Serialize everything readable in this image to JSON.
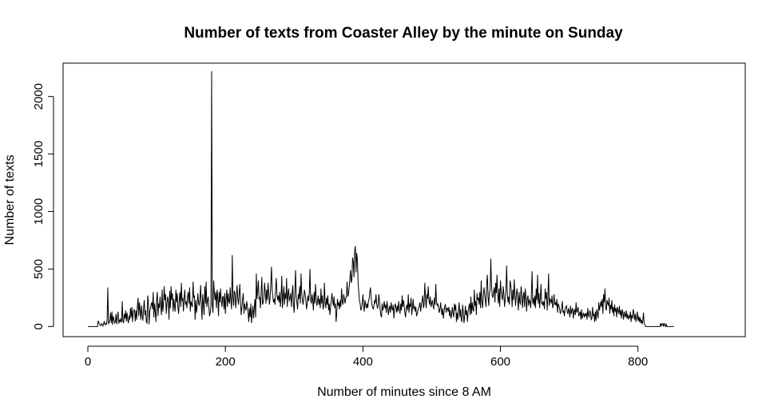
{
  "chart_data": {
    "type": "line",
    "title": "Number of texts from Coaster Alley by the minute on Sunday",
    "xlabel": "Number of minutes since 8 AM",
    "ylabel": "Number of texts",
    "xlim": [
      -36,
      956
    ],
    "ylim": [
      -88,
      2290
    ],
    "x_ticks": [
      0,
      200,
      400,
      600,
      800
    ],
    "y_ticks": [
      0,
      500,
      1000,
      1500,
      2000
    ],
    "grid": false,
    "line_color": "#000000",
    "x_start": 0,
    "x_step": 1,
    "values": [
      0,
      0,
      0,
      0,
      0,
      0,
      0,
      0,
      0,
      0,
      0,
      0,
      0,
      0,
      0,
      50,
      35,
      20,
      8,
      10,
      25,
      18,
      5,
      30,
      42,
      15,
      25,
      20,
      60,
      340,
      20,
      40,
      55,
      120,
      30,
      130,
      15,
      90,
      60,
      30,
      40,
      110,
      20,
      80,
      130,
      25,
      60,
      40,
      70,
      35,
      220,
      50,
      30,
      110,
      70,
      140,
      45,
      120,
      60,
      30,
      95,
      60,
      160,
      80,
      170,
      40,
      120,
      150,
      130,
      45,
      140,
      60,
      180,
      250,
      90,
      210,
      140,
      60,
      185,
      100,
      50,
      150,
      230,
      100,
      140,
      40,
      30,
      270,
      210,
      20,
      130,
      160,
      190,
      210,
      150,
      300,
      80,
      200,
      130,
      40,
      230,
      300,
      90,
      200,
      160,
      260,
      180,
      100,
      320,
      130,
      190,
      350,
      230,
      280,
      110,
      200,
      260,
      220,
      60,
      310,
      160,
      350,
      230,
      290,
      130,
      240,
      180,
      130,
      320,
      210,
      290,
      160,
      110,
      240,
      300,
      170,
      380,
      220,
      250,
      130,
      250,
      320,
      190,
      220,
      160,
      260,
      300,
      200,
      340,
      130,
      220,
      190,
      170,
      390,
      250,
      270,
      60,
      230,
      120,
      180,
      290,
      210,
      180,
      240,
      360,
      180,
      60,
      280,
      190,
      100,
      350,
      200,
      390,
      170,
      230,
      260,
      160,
      90,
      120,
      180,
      2220,
      190,
      120,
      400,
      290,
      230,
      300,
      160,
      320,
      260,
      90,
      300,
      210,
      330,
      230,
      170,
      260,
      260,
      150,
      290,
      110,
      240,
      320,
      170,
      290,
      220,
      200,
      340,
      230,
      150,
      620,
      250,
      180,
      310,
      290,
      160,
      240,
      360,
      250,
      190,
      280,
      370,
      210,
      100,
      170,
      240,
      290,
      110,
      200,
      160,
      140,
      220,
      180,
      120,
      40,
      160,
      80,
      200,
      30,
      110,
      180,
      70,
      160,
      240,
      80,
      460,
      240,
      310,
      400,
      240,
      250,
      160,
      300,
      430,
      190,
      210,
      260,
      380,
      300,
      200,
      320,
      230,
      380,
      290,
      190,
      250,
      370,
      520,
      320,
      260,
      210,
      240,
      190,
      320,
      420,
      280,
      230,
      270,
      210,
      300,
      170,
      250,
      440,
      160,
      260,
      350,
      190,
      290,
      240,
      420,
      170,
      280,
      330,
      220,
      250,
      290,
      170,
      280,
      360,
      190,
      120,
      310,
      490,
      260,
      210,
      150,
      280,
      240,
      350,
      200,
      460,
      300,
      230,
      190,
      250,
      320,
      280,
      230,
      150,
      200,
      270,
      220,
      290,
      500,
      230,
      200,
      280,
      230,
      140,
      300,
      200,
      370,
      250,
      180,
      220,
      270,
      190,
      240,
      160,
      330,
      200,
      270,
      150,
      180,
      380,
      210,
      160,
      250,
      190,
      270,
      140,
      200,
      100,
      170,
      230,
      290,
      220,
      180,
      260,
      160,
      200,
      40,
      120,
      240,
      180,
      210,
      150,
      230,
      170,
      330,
      220,
      190,
      280,
      250,
      200,
      240,
      260,
      390,
      260,
      280,
      340,
      410,
      490,
      380,
      410,
      600,
      560,
      430,
      660,
      700,
      470,
      640,
      580,
      380,
      300,
      220,
      200,
      140,
      160,
      200,
      280,
      180,
      130,
      230,
      190,
      160,
      200,
      160,
      220,
      240,
      300,
      340,
      250,
      190,
      170,
      150,
      180,
      230,
      200,
      280,
      200,
      160,
      170,
      280,
      230,
      150,
      100,
      80,
      200,
      140,
      170,
      220,
      160,
      190,
      120,
      220,
      170,
      100,
      150,
      180,
      120,
      210,
      160,
      140,
      190,
      70,
      150,
      200,
      170,
      120,
      180,
      130,
      220,
      160,
      110,
      200,
      140,
      270,
      170,
      230,
      180,
      120,
      80,
      160,
      190,
      140,
      280,
      120,
      200,
      170,
      250,
      100,
      160,
      240,
      150,
      180,
      130,
      170,
      90,
      110,
      140,
      160,
      180,
      210,
      130,
      190,
      220,
      270,
      160,
      190,
      380,
      250,
      160,
      280,
      240,
      350,
      230,
      190,
      260,
      170,
      200,
      230,
      180,
      150,
      250,
      190,
      370,
      220,
      180,
      200,
      160,
      120,
      150,
      210,
      140,
      100,
      160,
      70,
      130,
      180,
      190,
      120,
      160,
      160,
      130,
      170,
      90,
      140,
      70,
      100,
      170,
      120,
      80,
      200,
      140,
      190,
      40,
      120,
      60,
      150,
      210,
      80,
      150,
      60,
      40,
      190,
      120,
      30,
      90,
      180,
      100,
      140,
      40,
      130,
      170,
      200,
      100,
      260,
      110,
      210,
      150,
      130,
      320,
      180,
      220,
      100,
      290,
      230,
      250,
      190,
      300,
      160,
      400,
      220,
      160,
      250,
      340,
      290,
      230,
      170,
      380,
      450,
      260,
      180,
      300,
      310,
      590,
      360,
      270,
      250,
      300,
      340,
      210,
      380,
      290,
      450,
      280,
      200,
      330,
      170,
      400,
      310,
      260,
      230,
      350,
      280,
      170,
      240,
      320,
      530,
      290,
      210,
      260,
      190,
      400,
      360,
      300,
      170,
      320,
      230,
      410,
      280,
      180,
      270,
      330,
      250,
      140,
      300,
      220,
      190,
      350,
      280,
      160,
      250,
      300,
      170,
      330,
      260,
      130,
      240,
      270,
      180,
      230,
      220,
      160,
      280,
      480,
      200,
      250,
      180,
      270,
      160,
      330,
      230,
      450,
      200,
      290,
      160,
      250,
      370,
      200,
      210,
      180,
      220,
      150,
      330,
      240,
      300,
      140,
      260,
      460,
      180,
      240,
      230,
      200,
      270,
      160,
      190,
      280,
      190,
      210,
      180,
      240,
      120,
      200,
      180,
      160,
      110,
      130,
      160,
      220,
      120,
      140,
      90,
      150,
      170,
      180,
      130,
      110,
      160,
      130,
      80,
      180,
      110,
      140,
      160,
      70,
      130,
      150,
      100,
      210,
      120,
      140,
      170,
      90,
      110,
      130,
      60,
      150,
      70,
      100,
      120,
      80,
      110,
      90,
      120,
      60,
      160,
      100,
      80,
      140,
      120,
      60,
      70,
      170,
      90,
      110,
      40,
      130,
      50,
      150,
      120,
      70,
      210,
      140,
      180,
      220,
      170,
      240,
      110,
      280,
      210,
      330,
      160,
      140,
      230,
      200,
      180,
      250,
      110,
      190,
      150,
      230,
      120,
      170,
      90,
      190,
      130,
      160,
      80,
      170,
      140,
      110,
      180,
      100,
      140,
      70,
      150,
      120,
      60,
      130,
      100,
      80,
      140,
      70,
      110,
      60,
      90,
      80,
      130,
      40,
      100,
      70,
      150,
      120,
      60,
      110,
      40,
      80,
      130,
      50,
      90,
      40,
      80,
      30,
      60,
      20,
      50,
      120,
      30,
      15,
      0,
      0,
      0,
      0,
      0,
      0,
      0,
      0,
      0,
      0,
      0,
      0,
      0,
      0,
      0,
      0,
      0,
      0,
      0,
      0,
      0,
      0,
      30,
      5,
      20,
      25,
      0,
      30,
      10,
      0,
      25,
      0,
      0,
      0,
      0,
      0,
      0,
      0,
      0,
      0,
      0,
      0
    ]
  }
}
